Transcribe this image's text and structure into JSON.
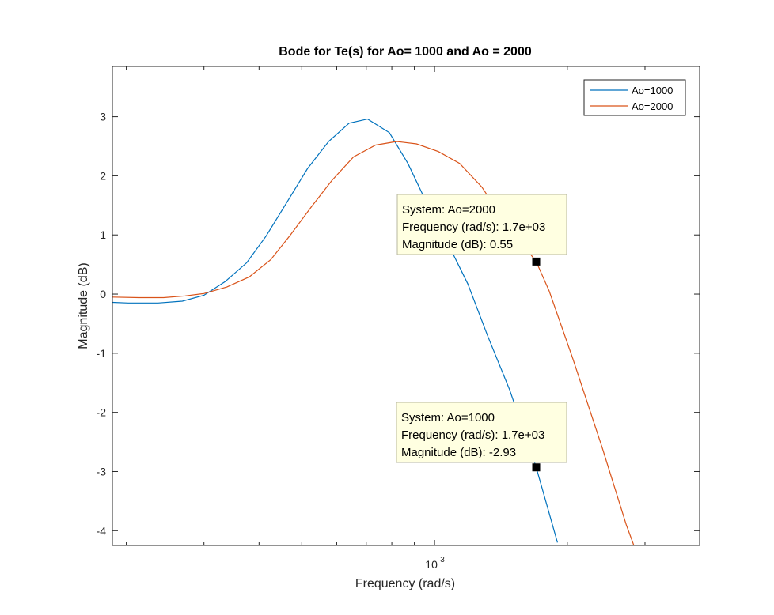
{
  "chart_data": {
    "type": "line",
    "title": "Bode for Te(s) for Ao= 1000 and Ao = 2000",
    "xlabel": "Frequency  (rad/s)",
    "ylabel": "Magnitude (dB)",
    "xscale": "log",
    "xlim": [
      186,
      3990
    ],
    "ylim": [
      -4.25,
      3.85
    ],
    "yticks": [
      -4,
      -3,
      -2,
      -1,
      0,
      1,
      2,
      3
    ],
    "xtick_label": {
      "base": "10",
      "exp": "3",
      "value": 1000
    },
    "grid": false,
    "legend": {
      "placement": "top-right"
    },
    "series": [
      {
        "name": "Ao=1000",
        "color": "#0072BD",
        "points": [
          [
            186,
            -0.14
          ],
          [
            202,
            -0.15
          ],
          [
            236,
            -0.15
          ],
          [
            268,
            -0.12
          ],
          [
            300,
            -0.02
          ],
          [
            335,
            0.21
          ],
          [
            375,
            0.53
          ],
          [
            415,
            0.98
          ],
          [
            465,
            1.58
          ],
          [
            515,
            2.12
          ],
          [
            575,
            2.58
          ],
          [
            640,
            2.89
          ],
          [
            705,
            2.96
          ],
          [
            790,
            2.73
          ],
          [
            870,
            2.21
          ],
          [
            960,
            1.54
          ],
          [
            1060,
            0.93
          ],
          [
            1190,
            0.17
          ],
          [
            1320,
            -0.71
          ],
          [
            1480,
            -1.62
          ],
          [
            1700,
            -2.93
          ],
          [
            1900,
            -4.2
          ]
        ]
      },
      {
        "name": "Ao=2000",
        "color": "#D95319",
        "points": [
          [
            186,
            -0.05
          ],
          [
            214,
            -0.06
          ],
          [
            243,
            -0.06
          ],
          [
            272,
            -0.03
          ],
          [
            300,
            0.01
          ],
          [
            338,
            0.12
          ],
          [
            380,
            0.29
          ],
          [
            425,
            0.58
          ],
          [
            470,
            0.99
          ],
          [
            525,
            1.47
          ],
          [
            585,
            1.92
          ],
          [
            655,
            2.32
          ],
          [
            735,
            2.52
          ],
          [
            820,
            2.58
          ],
          [
            910,
            2.54
          ],
          [
            1020,
            2.41
          ],
          [
            1140,
            2.21
          ],
          [
            1280,
            1.81
          ],
          [
            1430,
            1.27
          ],
          [
            1700,
            0.55
          ],
          [
            1820,
            0.05
          ],
          [
            2060,
            -1.1
          ],
          [
            2400,
            -2.6
          ],
          [
            2720,
            -3.9
          ],
          [
            2830,
            -4.25
          ]
        ]
      }
    ],
    "datatips": [
      {
        "series": "Ao=2000",
        "x": 1700,
        "y": 0.55,
        "lines": [
          "System: Ao=2000",
          "Frequency (rad/s): 1.7e+03",
          "Magnitude (dB): 0.55"
        ]
      },
      {
        "series": "Ao=1000",
        "x": 1700,
        "y": -2.93,
        "lines": [
          "System: Ao=1000",
          "Frequency (rad/s): 1.7e+03",
          "Magnitude (dB): -2.93"
        ]
      }
    ]
  }
}
